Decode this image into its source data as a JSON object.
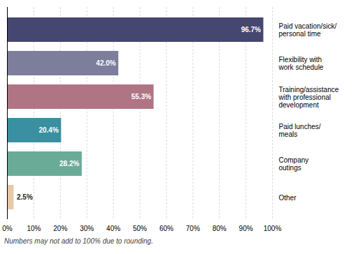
{
  "chart_data": {
    "type": "bar",
    "orientation": "horizontal",
    "categories": [
      "Paid vacation/sick/\npersonal time",
      "Flexibility with\nwork schedule",
      "Training/assistance\nwith professional\ndevelopment",
      "Paid lunches/\nmeals",
      "Company\noutings",
      "Other"
    ],
    "values": [
      96.7,
      42.0,
      55.3,
      20.4,
      28.2,
      2.5
    ],
    "value_labels": [
      "96.7%",
      "42.0%",
      "55.3%",
      "20.4%",
      "28.2%",
      "2.5%"
    ],
    "data_labels": true,
    "colors": [
      "#454770",
      "#7d7d9c",
      "#b07585",
      "#3a8fa0",
      "#6aab98",
      "#e8c8a8"
    ],
    "xlim": [
      0,
      100
    ],
    "xticks": [
      {
        "value": 0,
        "label": "0%"
      },
      {
        "value": 10,
        "label": "10%"
      },
      {
        "value": 20,
        "label": "20%"
      },
      {
        "value": 30,
        "label": "30%"
      },
      {
        "value": 40,
        "label": "40%"
      },
      {
        "value": 50,
        "label": "50%"
      },
      {
        "value": 60,
        "label": "60%"
      },
      {
        "value": 70,
        "label": "70%"
      },
      {
        "value": 80,
        "label": "80%"
      },
      {
        "value": 90,
        "label": "90%"
      },
      {
        "value": 100,
        "label": "100%"
      }
    ],
    "grid": true,
    "annotations": [
      "Numbers may not add to 100% due to rounding."
    ]
  }
}
